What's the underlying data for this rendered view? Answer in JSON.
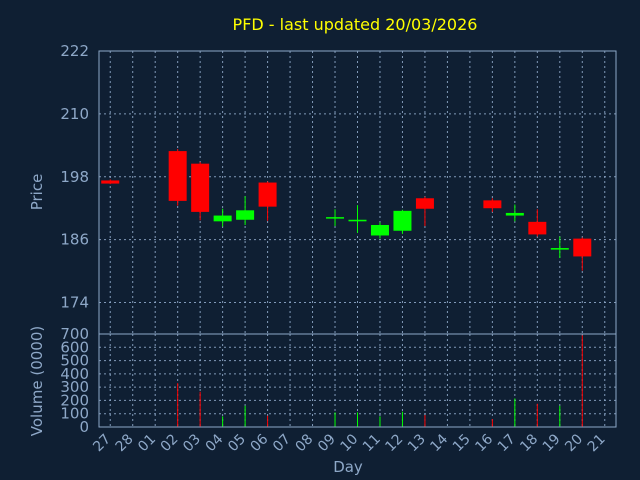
{
  "chart_data": {
    "type": "candlestick",
    "title": "PFD - last updated 20/03/2026",
    "xlabel": "Day",
    "categories": [
      "27",
      "28",
      "01",
      "02",
      "03",
      "04",
      "05",
      "06",
      "07",
      "08",
      "09",
      "10",
      "11",
      "12",
      "13",
      "14",
      "15",
      "16",
      "17",
      "18",
      "19",
      "20",
      "21"
    ],
    "price_panel": {
      "ylabel": "Price",
      "ylim": [
        168,
        222
      ],
      "yticks": [
        "222",
        "210",
        "198",
        "186",
        "174"
      ],
      "grid": true,
      "candles": [
        {
          "x": "27",
          "open": 197.3,
          "high": 197.5,
          "low": 196.6,
          "close": 196.7
        },
        {
          "x": "02",
          "open": 202.9,
          "high": 203.3,
          "low": 192.5,
          "close": 193.4
        },
        {
          "x": "03",
          "open": 200.5,
          "high": 200.8,
          "low": 189.7,
          "close": 191.3
        },
        {
          "x": "04",
          "open": 189.5,
          "high": 191.9,
          "low": 188.5,
          "close": 190.6
        },
        {
          "x": "05",
          "open": 189.8,
          "high": 194.3,
          "low": 188.8,
          "close": 191.6
        },
        {
          "x": "06",
          "open": 196.9,
          "high": 197.1,
          "low": 189.6,
          "close": 192.3
        },
        {
          "x": "09",
          "open": 190.1,
          "high": 191.8,
          "low": 188.6,
          "close": 190.3
        },
        {
          "x": "10",
          "open": 189.5,
          "high": 192.6,
          "low": 187.3,
          "close": 189.8
        },
        {
          "x": "11",
          "open": 186.8,
          "high": 189.3,
          "low": 186.2,
          "close": 188.8
        },
        {
          "x": "12",
          "open": 187.7,
          "high": 191.7,
          "low": 187.1,
          "close": 191.5
        },
        {
          "x": "13",
          "open": 193.9,
          "high": 194.2,
          "low": 188.6,
          "close": 191.9
        },
        {
          "x": "16",
          "open": 193.5,
          "high": 193.9,
          "low": 191.3,
          "close": 192.0
        },
        {
          "x": "17",
          "open": 190.6,
          "high": 192.7,
          "low": 189.5,
          "close": 191.1
        },
        {
          "x": "18",
          "open": 189.4,
          "high": 191.8,
          "low": 186.6,
          "close": 187.0
        },
        {
          "x": "19",
          "open": 184.1,
          "high": 186.6,
          "low": 182.5,
          "close": 184.4
        },
        {
          "x": "20",
          "open": 186.2,
          "high": 186.4,
          "low": 180.1,
          "close": 182.8
        }
      ],
      "up_color": "#00ff00",
      "down_color": "#ff0000"
    },
    "volume_panel": {
      "ylabel": "Volume (0000)",
      "ylim": [
        0,
        700
      ],
      "yticks": [
        "700",
        "600",
        "500",
        "400",
        "300",
        "200",
        "100",
        "0"
      ],
      "series": [
        {
          "values": [
            {
              "x": "02",
              "value": 330,
              "dir": "down"
            },
            {
              "x": "03",
              "value": 265,
              "dir": "down"
            },
            {
              "x": "04",
              "value": 80,
              "dir": "up"
            },
            {
              "x": "05",
              "value": 160,
              "dir": "up"
            },
            {
              "x": "06",
              "value": 85,
              "dir": "down"
            },
            {
              "x": "09",
              "value": 110,
              "dir": "up"
            },
            {
              "x": "10",
              "value": 110,
              "dir": "up"
            },
            {
              "x": "11",
              "value": 80,
              "dir": "up"
            },
            {
              "x": "12",
              "value": 115,
              "dir": "up"
            },
            {
              "x": "13",
              "value": 90,
              "dir": "down"
            },
            {
              "x": "16",
              "value": 60,
              "dir": "down"
            },
            {
              "x": "17",
              "value": 215,
              "dir": "up"
            },
            {
              "x": "18",
              "value": 175,
              "dir": "down"
            },
            {
              "x": "19",
              "value": 160,
              "dir": "up"
            },
            {
              "x": "20",
              "value": 690,
              "dir": "down"
            }
          ]
        }
      ]
    },
    "colors": {
      "background": "#0f1f33",
      "axis_text": "#8ea8c8",
      "title": "#ffff00"
    }
  }
}
